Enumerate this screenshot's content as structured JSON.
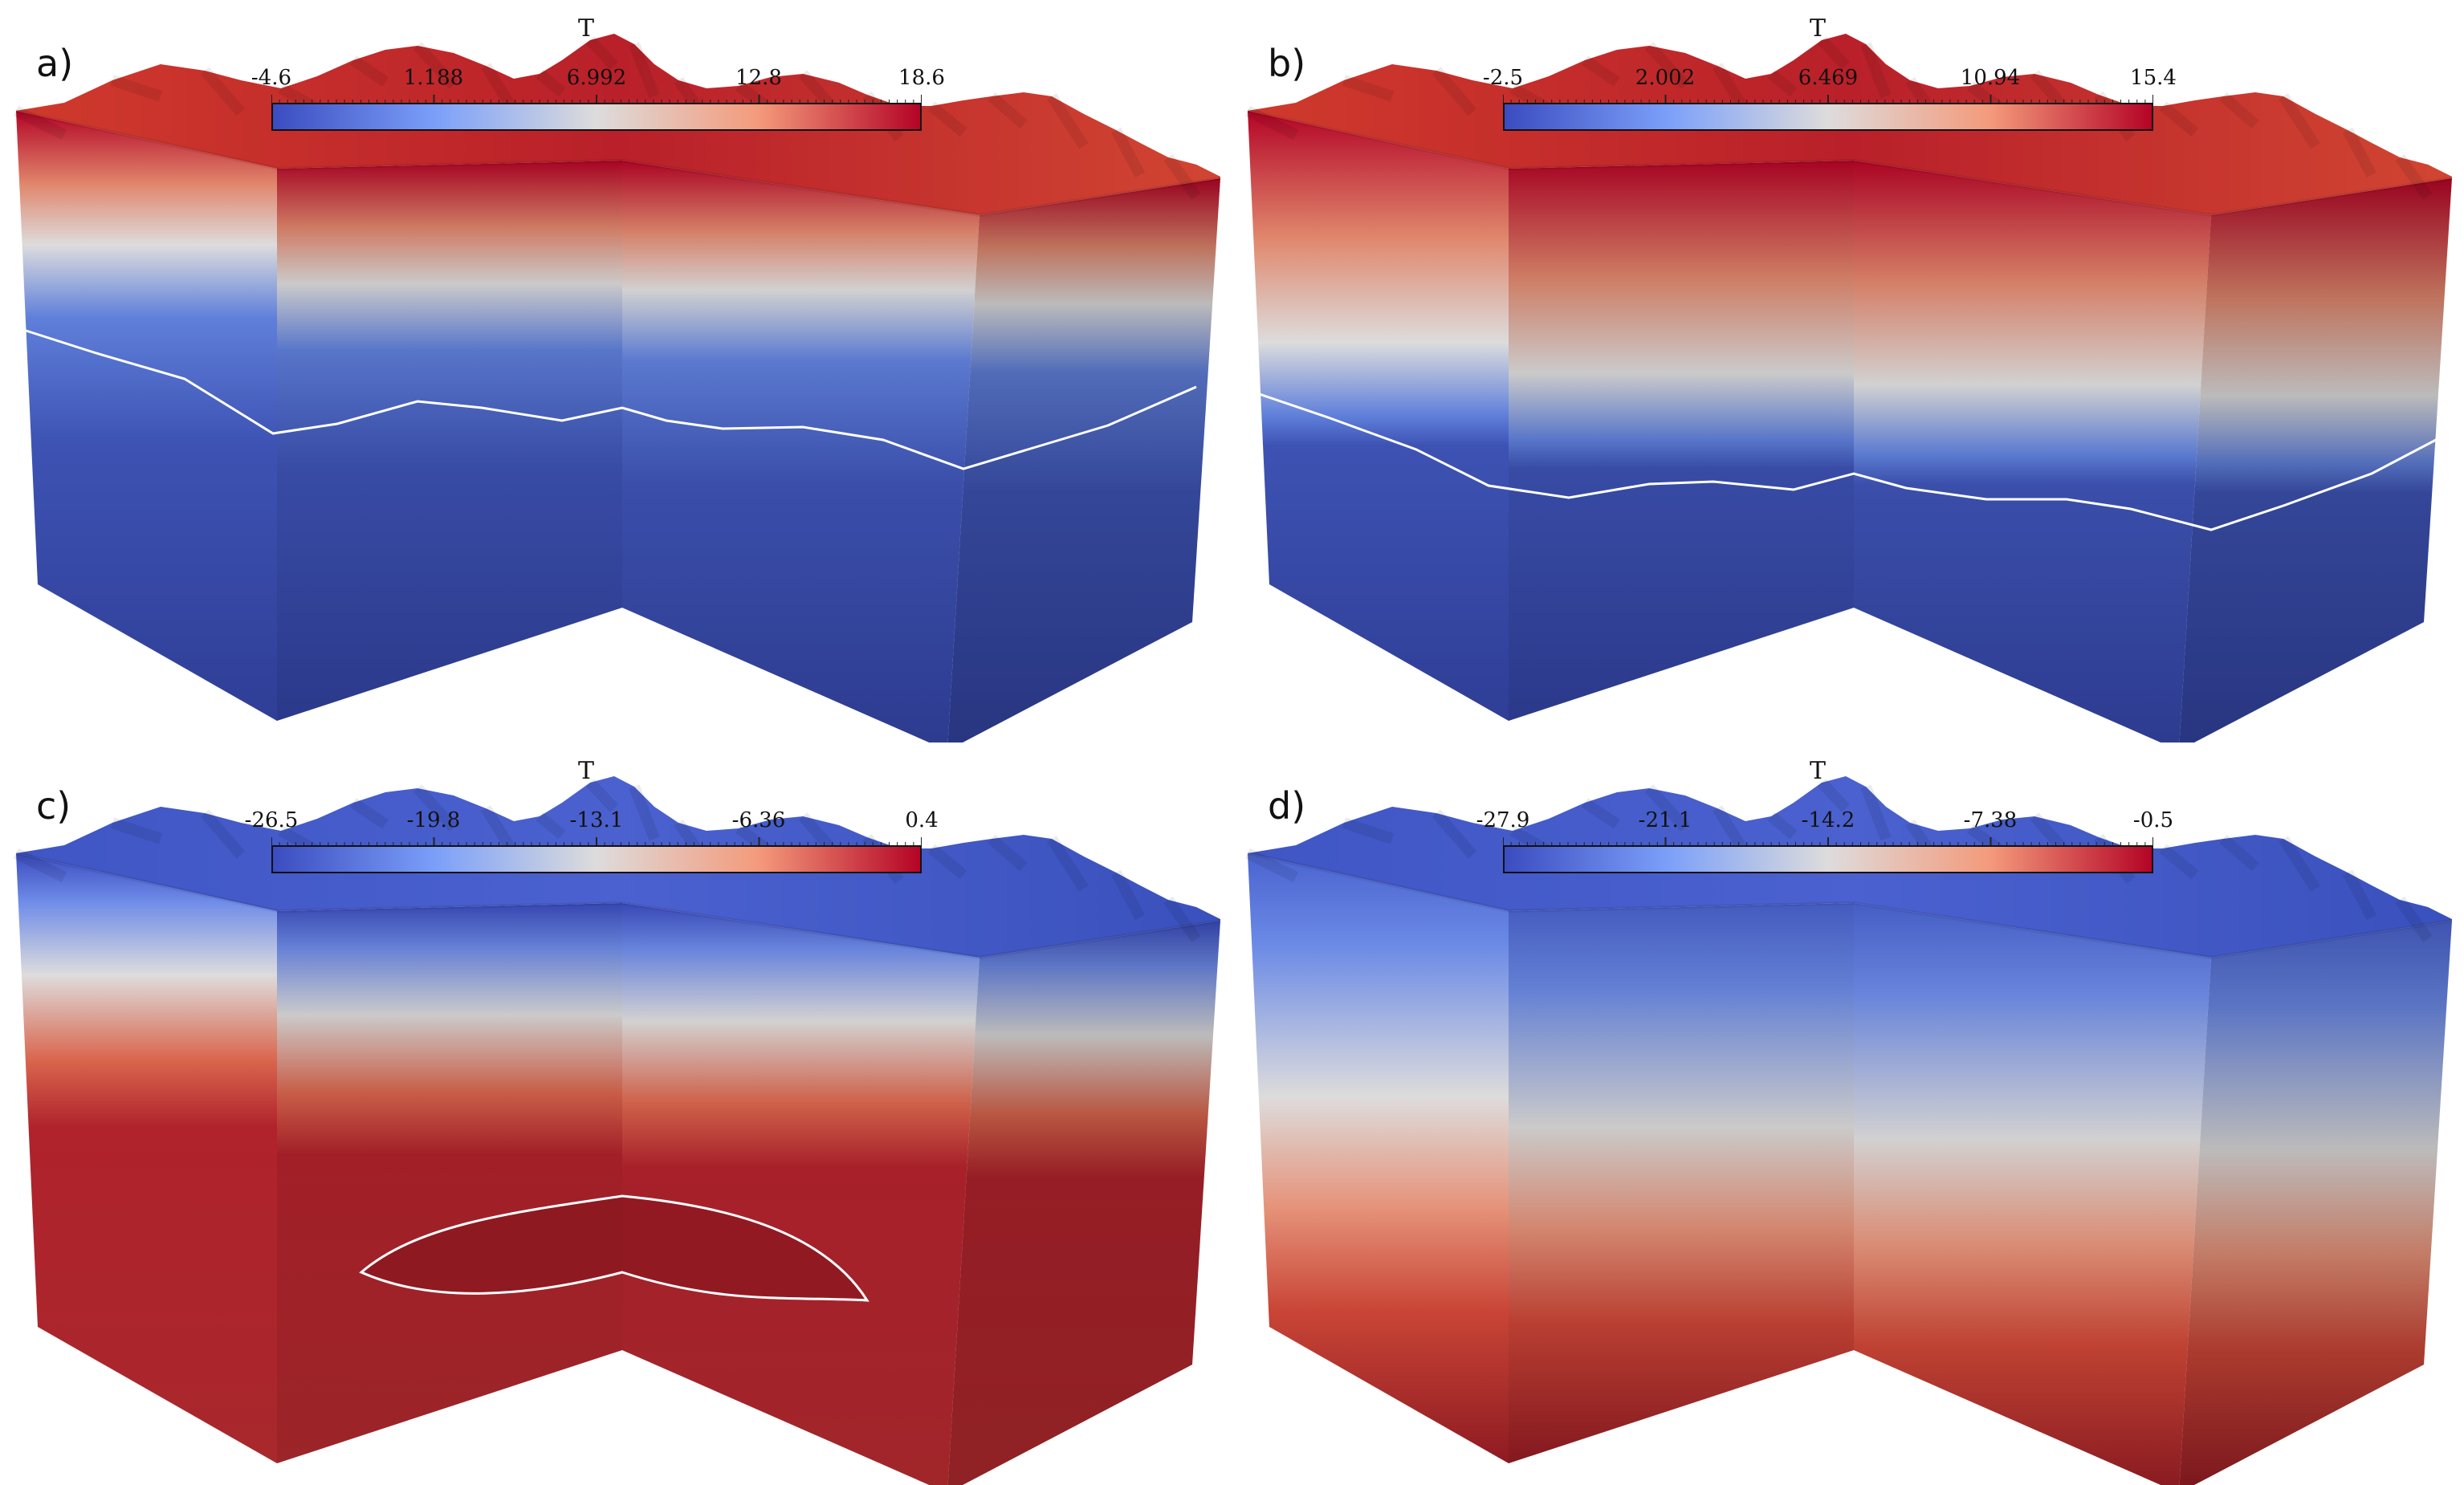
{
  "colormap": {
    "low": "#3b4cc0",
    "mid": "#dddcdc",
    "high": "#b40426"
  },
  "panels": [
    {
      "id": "a",
      "label": "a)",
      "title": "T",
      "ticks": [
        "-4.6",
        "1.188",
        "6.992",
        "12.8",
        "18.6"
      ],
      "top_color": "hot",
      "contour": "band-upper"
    },
    {
      "id": "b",
      "label": "b)",
      "title": "T",
      "ticks": [
        "-2.5",
        "2.002",
        "6.469",
        "10.94",
        "15.4"
      ],
      "top_color": "hot",
      "contour": "band-lower"
    },
    {
      "id": "c",
      "label": "c)",
      "title": "T",
      "ticks": [
        "-26.5",
        "-19.8",
        "-13.1",
        "-6.36",
        "0.4"
      ],
      "top_color": "cold",
      "contour": "lens"
    },
    {
      "id": "d",
      "label": "d)",
      "title": "T",
      "ticks": [
        "-27.9",
        "-21.1",
        "-14.2",
        "-7.38",
        "-0.5"
      ],
      "top_color": "cold",
      "contour": "none"
    }
  ]
}
